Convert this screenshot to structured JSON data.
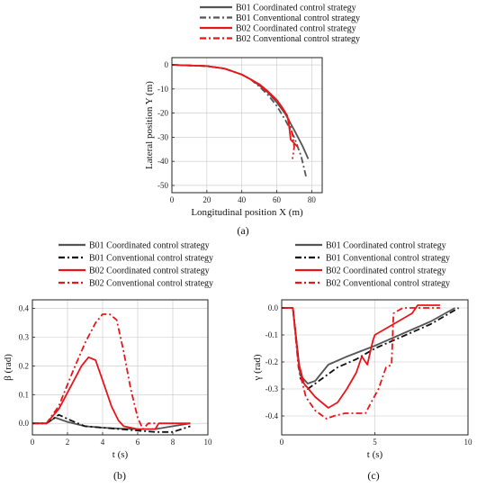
{
  "colors": {
    "b01": "#555555",
    "b01_conv": "#111111",
    "b02": "#e8161b"
  },
  "chart_data": [
    {
      "id": "a",
      "panel_label": "(a)",
      "type": "line",
      "xlabel": "Longitudinal position X (m)",
      "ylabel": "Lateral position Y (m)",
      "xlim": [
        0,
        86
      ],
      "ylim": [
        -53,
        3
      ],
      "xticks": [
        0,
        20,
        40,
        60,
        80
      ],
      "yticks": [
        0,
        -10,
        -20,
        -30,
        -40,
        -50
      ],
      "grid": true,
      "legend_position": "top",
      "series": [
        {
          "name": "B01 Coordinated control strategy",
          "color": "#555555",
          "dash": "solid",
          "x": [
            0,
            20,
            30,
            40,
            45,
            50,
            55,
            60,
            65,
            70,
            75,
            78
          ],
          "y": [
            0,
            -0.5,
            -1.5,
            -4,
            -6,
            -8.5,
            -11.5,
            -15.5,
            -20.5,
            -27,
            -34,
            -39
          ]
        },
        {
          "name": "B01 Conventional control strategy",
          "color": "#555555",
          "dash": "dashdot",
          "x": [
            0,
            20,
            30,
            40,
            45,
            50,
            55,
            60,
            65,
            70,
            74,
            77
          ],
          "y": [
            0,
            -0.5,
            -1.5,
            -4,
            -6,
            -9,
            -12.5,
            -17,
            -23,
            -30,
            -38,
            -47
          ]
        },
        {
          "name": "B02 Coordinated control strategy",
          "color": "#e8161b",
          "dash": "solid",
          "x": [
            0,
            20,
            30,
            40,
            45,
            50,
            55,
            60,
            63,
            66,
            67,
            68,
            72
          ],
          "y": [
            0,
            -0.5,
            -1.5,
            -4,
            -6,
            -8,
            -11,
            -14.5,
            -17.5,
            -21,
            -25,
            -31,
            -34
          ]
        },
        {
          "name": "B02 Conventional control strategy",
          "color": "#e8161b",
          "dash": "dashdot",
          "x": [
            0,
            20,
            30,
            40,
            45,
            50,
            55,
            60,
            64,
            67,
            69,
            70,
            69
          ],
          "y": [
            0,
            -0.5,
            -1.5,
            -4,
            -6,
            -8.5,
            -11.5,
            -15,
            -19,
            -23,
            -29,
            -34,
            -39
          ]
        }
      ]
    },
    {
      "id": "b",
      "panel_label": "(b)",
      "type": "line",
      "xlabel": "t (s)",
      "ylabel": "β (rad)",
      "xlim": [
        0,
        10
      ],
      "ylim": [
        -0.04,
        0.43
      ],
      "xticks": [
        0,
        2,
        4,
        6,
        8,
        10
      ],
      "yticks": [
        0.0,
        0.1,
        0.2,
        0.3,
        0.4
      ],
      "grid": true,
      "legend_position": "top",
      "series": [
        {
          "name": "B01 Coordinated control strategy",
          "color": "#555555",
          "dash": "solid",
          "x": [
            0,
            0.8,
            1.3,
            2,
            3,
            4,
            5,
            6,
            7,
            8,
            9
          ],
          "y": [
            0,
            0,
            0.02,
            0.005,
            -0.01,
            -0.015,
            -0.018,
            -0.02,
            -0.02,
            -0.01,
            0
          ]
        },
        {
          "name": "B01 Conventional control strategy",
          "color": "#111111",
          "dash": "dashdot",
          "x": [
            0,
            0.8,
            1.5,
            2.2,
            3,
            4,
            5,
            6,
            7,
            8,
            9
          ],
          "y": [
            0,
            0,
            0.03,
            0.01,
            -0.01,
            -0.015,
            -0.02,
            -0.025,
            -0.03,
            -0.03,
            -0.01
          ]
        },
        {
          "name": "B02 Coordinated control strategy",
          "color": "#e8161b",
          "dash": "solid",
          "x": [
            0,
            0.8,
            1.5,
            2.2,
            2.8,
            3.2,
            3.6,
            4.0,
            4.5,
            4.9,
            5.2,
            6,
            7,
            7.2,
            8,
            9
          ],
          "y": [
            0,
            0,
            0.05,
            0.13,
            0.2,
            0.23,
            0.22,
            0.15,
            0.06,
            0.01,
            -0.01,
            -0.02,
            -0.02,
            0,
            0,
            0
          ]
        },
        {
          "name": "B02 Conventional control strategy",
          "color": "#e8161b",
          "dash": "dashdot",
          "x": [
            0,
            0.8,
            1.5,
            2.3,
            3.0,
            3.6,
            4.0,
            4.4,
            4.8,
            5.2,
            5.6,
            6.0,
            6.3,
            6.6,
            7
          ],
          "y": [
            0,
            0,
            0.06,
            0.18,
            0.28,
            0.35,
            0.38,
            0.38,
            0.36,
            0.25,
            0.12,
            0.02,
            -0.02,
            0,
            0
          ]
        }
      ]
    },
    {
      "id": "c",
      "panel_label": "(c)",
      "type": "line",
      "xlabel": "t (s)",
      "ylabel": "γ (rad)",
      "xlim": [
        0,
        10
      ],
      "ylim": [
        -0.47,
        0.03
      ],
      "xticks": [
        0,
        5,
        10
      ],
      "yticks": [
        0.0,
        -0.1,
        -0.2,
        -0.3,
        -0.4
      ],
      "grid": true,
      "legend_position": "top",
      "series": [
        {
          "name": "B01 Coordinated control strategy",
          "color": "#555555",
          "dash": "solid",
          "x": [
            0,
            0.6,
            1.0,
            1.4,
            1.8,
            2.5,
            3.5,
            5,
            6,
            7,
            8,
            9.3
          ],
          "y": [
            0,
            0,
            -0.25,
            -0.28,
            -0.27,
            -0.21,
            -0.18,
            -0.14,
            -0.11,
            -0.08,
            -0.05,
            0
          ]
        },
        {
          "name": "B01 Conventional control strategy",
          "color": "#111111",
          "dash": "dashdot",
          "x": [
            0,
            0.6,
            1.0,
            1.4,
            2.0,
            3.0,
            4,
            5,
            6,
            7,
            8,
            9.5
          ],
          "y": [
            0,
            0,
            -0.26,
            -0.3,
            -0.27,
            -0.22,
            -0.19,
            -0.15,
            -0.12,
            -0.09,
            -0.06,
            0
          ]
        },
        {
          "name": "B02 Coordinated control strategy",
          "color": "#e8161b",
          "dash": "solid",
          "x": [
            0,
            0.6,
            0.9,
            1.2,
            1.8,
            2.5,
            3.0,
            3.5,
            4.0,
            4.3,
            4.6,
            4.9,
            5.0,
            6,
            7,
            7.3,
            8,
            8.5
          ],
          "y": [
            0,
            0,
            -0.2,
            -0.28,
            -0.33,
            -0.37,
            -0.35,
            -0.3,
            -0.24,
            -0.18,
            -0.21,
            -0.12,
            -0.1,
            -0.06,
            -0.02,
            0.01,
            0.01,
            0.01
          ]
        },
        {
          "name": "B02 Conventional control strategy",
          "color": "#e8161b",
          "dash": "dashdot",
          "x": [
            0,
            0.6,
            0.9,
            1.3,
            1.8,
            2.4,
            2.8,
            3.4,
            4.5,
            4.8,
            5.2,
            5.6,
            5.9,
            6.0,
            6.5,
            7.5,
            8.5
          ],
          "y": [
            0,
            0,
            -0.22,
            -0.33,
            -0.38,
            -0.41,
            -0.4,
            -0.39,
            -0.39,
            -0.35,
            -0.3,
            -0.22,
            -0.21,
            -0.02,
            0,
            0,
            0
          ]
        }
      ]
    }
  ]
}
